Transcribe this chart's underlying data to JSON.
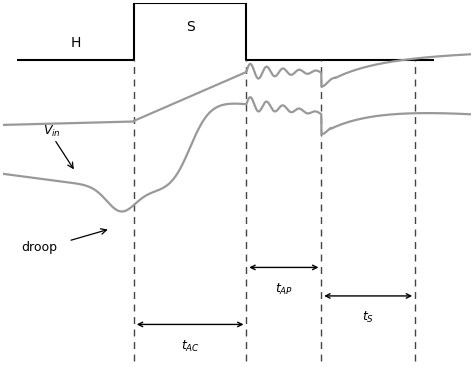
{
  "bg_color": "#ffffff",
  "line_color": "#999999",
  "annotation_color": "#000000",
  "dashed_line_color": "#444444",
  "square_wave_color": "#000000",
  "xlim": [
    0,
    10
  ],
  "ylim": [
    -4.0,
    5.0
  ],
  "label_H": "H",
  "label_S": "S",
  "dashed_x1": 2.8,
  "dashed_x2": 5.2,
  "dashed_x3": 6.8,
  "dashed_x4": 8.8,
  "sq_low_left_x": 0.3,
  "sq_low_right_x": 9.2,
  "sq_rise_x": 2.8,
  "sq_fall_x": 5.2,
  "sq_low_y": 3.6,
  "sq_high_y": 5.0
}
